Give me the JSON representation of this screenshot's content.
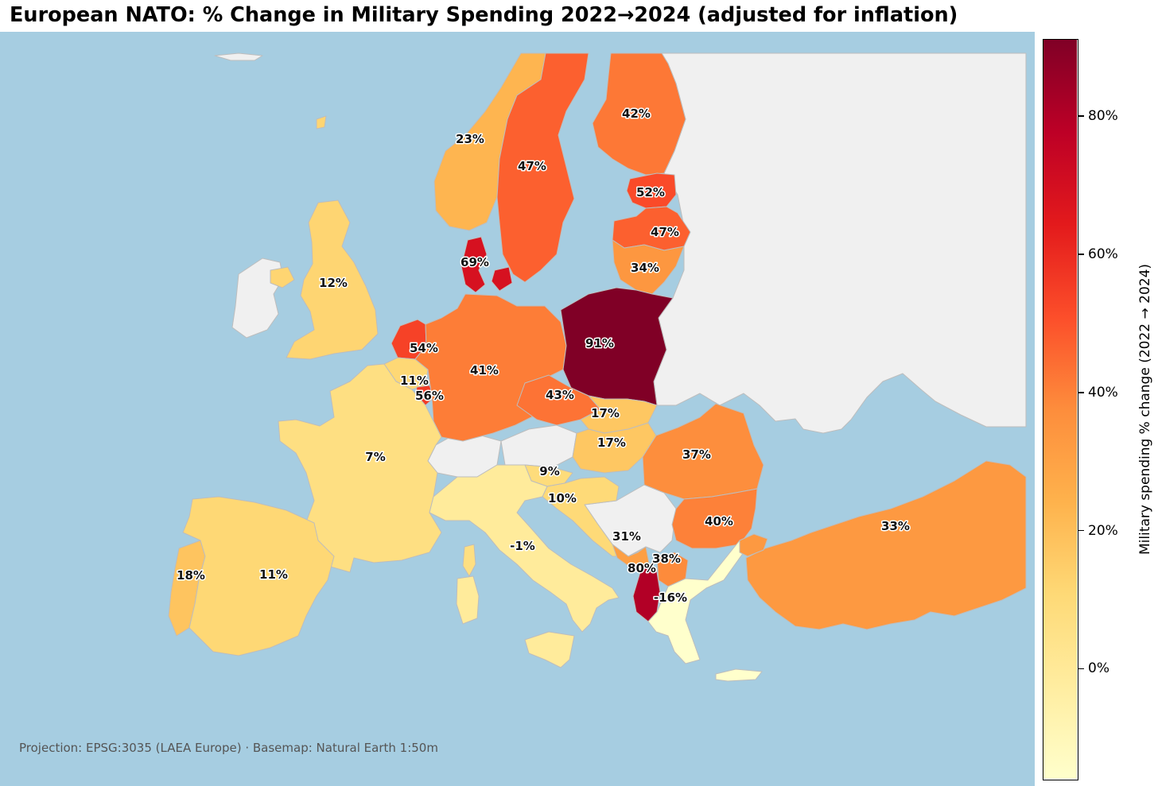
{
  "title": "European NATO: % Change in Military Spending 2022→2024 (adjusted for inflation)",
  "credit": "Projection: EPSG:3035 (LAEA Europe) · Basemap: Natural Earth 1:50m",
  "colorbar": {
    "label": "Military spending % change (2022 → 2024)",
    "min": -16,
    "max": 91,
    "ticks": [
      {
        "value": 80,
        "label": "80%"
      },
      {
        "value": 60,
        "label": "60%"
      },
      {
        "value": 40,
        "label": "40%"
      },
      {
        "value": 20,
        "label": "20%"
      },
      {
        "value": 0,
        "label": "0%"
      }
    ],
    "colormap": "YlOrRd"
  },
  "colors": {
    "ocean": "#a6cde1",
    "non_nato": "#f0f0f0",
    "border": "#bdbdbd"
  },
  "map_labels": {
    "norway": {
      "value": 23,
      "text": "23%"
    },
    "sweden": {
      "value": 47,
      "text": "47%"
    },
    "finland": {
      "value": 42,
      "text": "42%"
    },
    "estonia": {
      "value": 52,
      "text": "52%"
    },
    "latvia": {
      "value": 47,
      "text": "47%"
    },
    "lithuania": {
      "value": 34,
      "text": "34%"
    },
    "denmark": {
      "value": 69,
      "text": "69%"
    },
    "uk": {
      "value": 12,
      "text": "12%"
    },
    "netherlands": {
      "value": 54,
      "text": "54%"
    },
    "belgium": {
      "value": 11,
      "text": "11%"
    },
    "luxembourg": {
      "value": 56,
      "text": "56%"
    },
    "germany": {
      "value": 41,
      "text": "41%"
    },
    "poland": {
      "value": 91,
      "text": "91%"
    },
    "czechia": {
      "value": 43,
      "text": "43%"
    },
    "slovakia": {
      "value": 17,
      "text": "17%"
    },
    "hungary": {
      "value": 17,
      "text": "17%"
    },
    "france": {
      "value": 7,
      "text": "7%"
    },
    "slovenia": {
      "value": 9,
      "text": "9%"
    },
    "croatia": {
      "value": 10,
      "text": "10%"
    },
    "romania": {
      "value": 37,
      "text": "37%"
    },
    "bulgaria": {
      "value": 40,
      "text": "40%"
    },
    "montenegro": {
      "value": 31,
      "text": "31%"
    },
    "north_macedonia": {
      "value": 38,
      "text": "38%"
    },
    "albania": {
      "value": 80,
      "text": "80%"
    },
    "greece": {
      "value": -16,
      "text": "-16%"
    },
    "italy": {
      "value": -1,
      "text": "-1%"
    },
    "portugal": {
      "value": 18,
      "text": "18%"
    },
    "spain": {
      "value": 11,
      "text": "11%"
    },
    "turkey": {
      "value": 33,
      "text": "33%"
    }
  }
}
